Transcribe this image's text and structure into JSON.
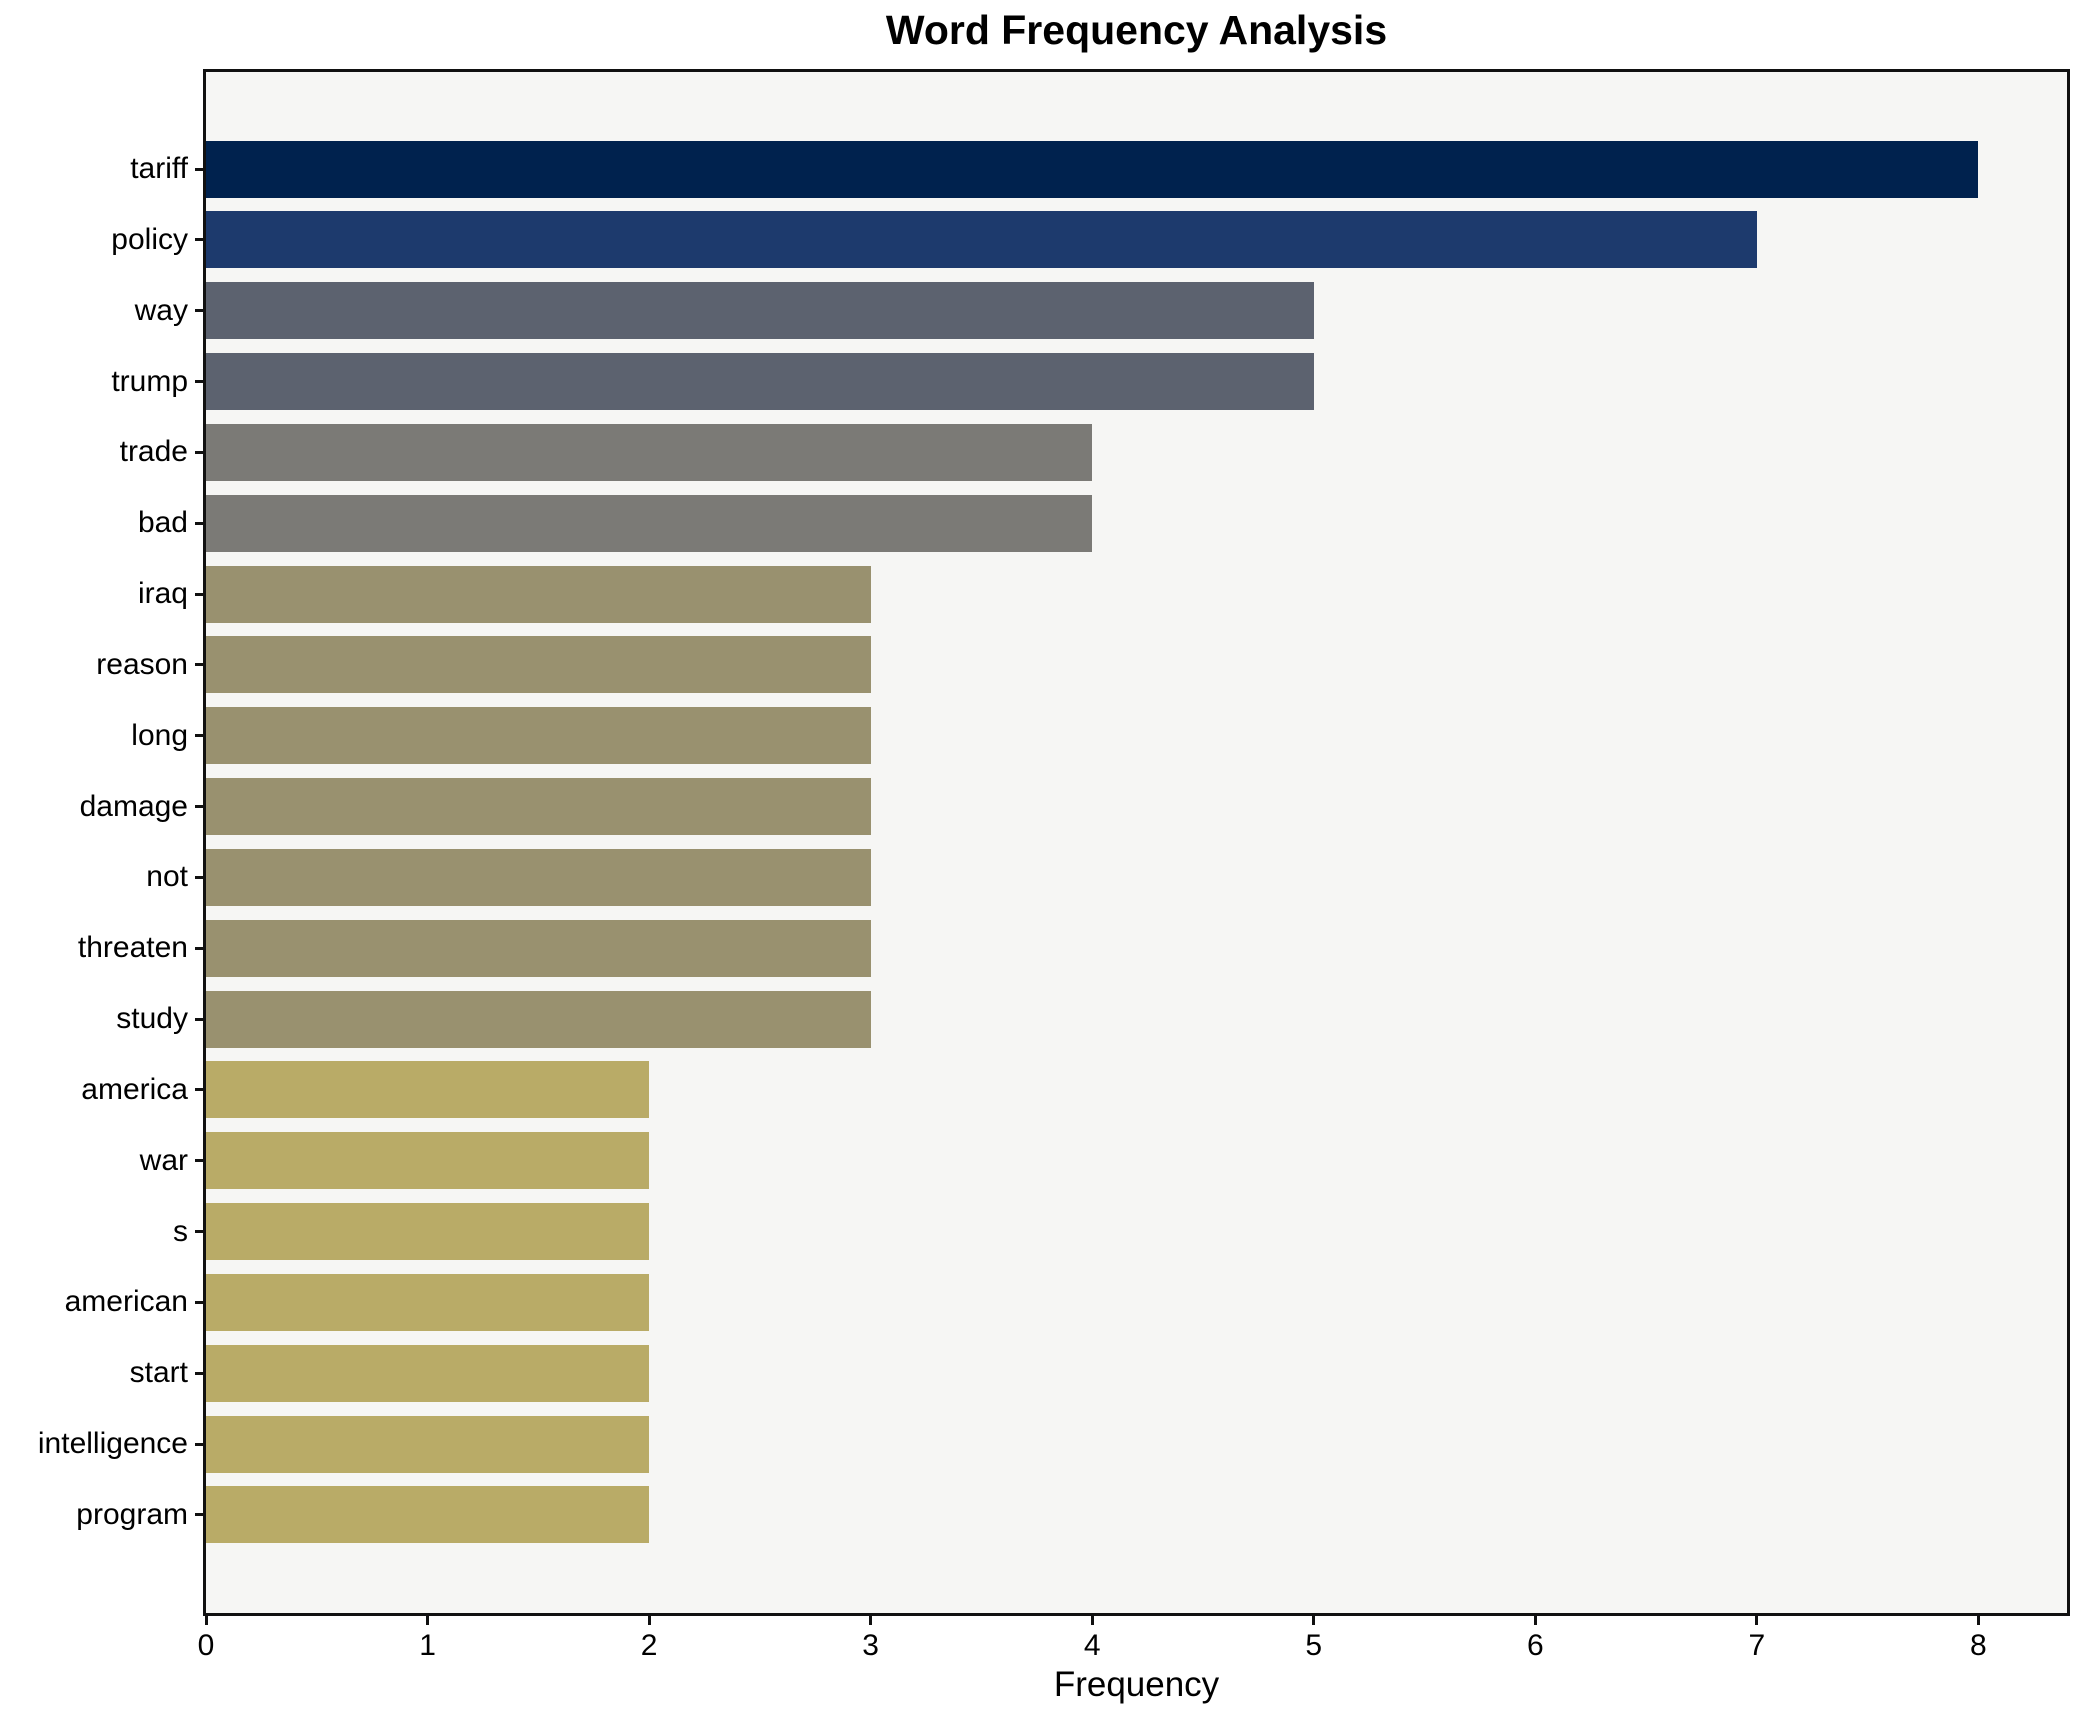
{
  "chart_data": {
    "type": "bar",
    "orientation": "horizontal",
    "title": "Word Frequency Analysis",
    "xlabel": "Frequency",
    "ylabel": "",
    "categories": [
      "tariff",
      "policy",
      "way",
      "trump",
      "trade",
      "bad",
      "iraq",
      "reason",
      "long",
      "damage",
      "not",
      "threaten",
      "study",
      "america",
      "war",
      "s",
      "american",
      "start",
      "intelligence",
      "program"
    ],
    "values": [
      8,
      7,
      5,
      5,
      4,
      4,
      3,
      3,
      3,
      3,
      3,
      3,
      3,
      2,
      2,
      2,
      2,
      2,
      2,
      2
    ],
    "bar_colors": [
      "#00224e",
      "#1d3a6d",
      "#5c626f",
      "#5c626f",
      "#7b7a76",
      "#7b7a76",
      "#99916f",
      "#99916f",
      "#99916f",
      "#99916f",
      "#99916f",
      "#99916f",
      "#99916f",
      "#b9ab67",
      "#b9ab67",
      "#b9ab67",
      "#b9ab67",
      "#b9ab67",
      "#b9ab67",
      "#b9ab67"
    ],
    "x_ticks": [
      0,
      1,
      2,
      3,
      4,
      5,
      6,
      7,
      8
    ],
    "xlim": [
      0,
      8.4
    ],
    "grid": false,
    "legend": null,
    "plot_bg": "#f6f6f4",
    "fig_bg": "#ffffff",
    "spine_color": "#111111",
    "bar_height_frac": 0.8
  }
}
